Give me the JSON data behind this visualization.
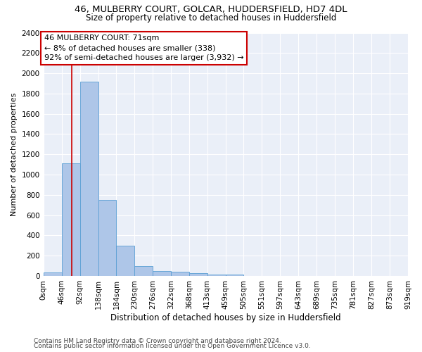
{
  "title1": "46, MULBERRY COURT, GOLCAR, HUDDERSFIELD, HD7 4DL",
  "title2": "Size of property relative to detached houses in Huddersfield",
  "xlabel": "Distribution of detached houses by size in Huddersfield",
  "ylabel": "Number of detached properties",
  "bar_values": [
    35,
    1110,
    1920,
    750,
    300,
    100,
    45,
    40,
    25,
    15,
    15,
    0,
    0,
    0,
    0,
    0,
    0,
    0,
    0,
    0
  ],
  "bin_edges": [
    0,
    46,
    92,
    138,
    184,
    230,
    276,
    322,
    368,
    413,
    459,
    505,
    551,
    597,
    643,
    689,
    735,
    781,
    827,
    873,
    919
  ],
  "tick_labels": [
    "0sqm",
    "46sqm",
    "92sqm",
    "138sqm",
    "184sqm",
    "230sqm",
    "276sqm",
    "322sqm",
    "368sqm",
    "413sqm",
    "459sqm",
    "505sqm",
    "551sqm",
    "597sqm",
    "643sqm",
    "689sqm",
    "735sqm",
    "781sqm",
    "827sqm",
    "873sqm",
    "919sqm"
  ],
  "bar_color": "#aec6e8",
  "bar_edge_color": "#5a9fd4",
  "vline_x": 71,
  "vline_color": "#cc0000",
  "annotation_line1": "46 MULBERRY COURT: 71sqm",
  "annotation_line2": "← 8% of detached houses are smaller (338)",
  "annotation_line3": "92% of semi-detached houses are larger (3,932) →",
  "annotation_box_color": "#cc0000",
  "ylim": [
    0,
    2400
  ],
  "yticks": [
    0,
    200,
    400,
    600,
    800,
    1000,
    1200,
    1400,
    1600,
    1800,
    2000,
    2200,
    2400
  ],
  "footer1": "Contains HM Land Registry data © Crown copyright and database right 2024.",
  "footer2": "Contains public sector information licensed under the Open Government Licence v3.0.",
  "plot_bg_color": "#eaeff8",
  "title1_fontsize": 9.5,
  "title2_fontsize": 8.5,
  "xlabel_fontsize": 8.5,
  "ylabel_fontsize": 8.0,
  "tick_fontsize": 7.5,
  "annot_fontsize": 8.0,
  "footer_fontsize": 6.5
}
